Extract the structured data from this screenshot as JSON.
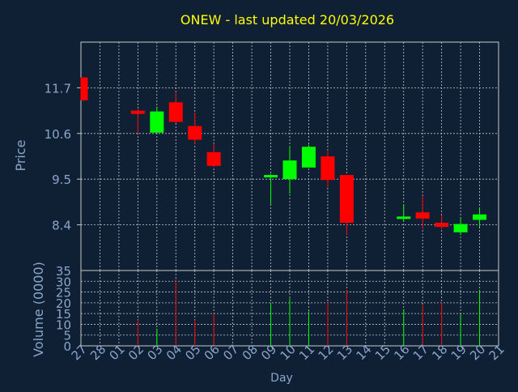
{
  "chart_data": {
    "type": "candlestick",
    "title": "ONEW - last updated 20/03/2026",
    "xlabel": "Day",
    "price_ylabel": "Price",
    "volume_ylabel": "Volume (0000)",
    "x_tick_labels": [
      "27",
      "28",
      "01",
      "02",
      "03",
      "04",
      "05",
      "06",
      "07",
      "08",
      "09",
      "10",
      "11",
      "12",
      "13",
      "14",
      "15",
      "16",
      "17",
      "18",
      "19",
      "20",
      "21"
    ],
    "price_yticks": [
      "11.7",
      "10.6",
      "9.5",
      "8.4"
    ],
    "price_ylim": [
      7.3,
      12.8
    ],
    "volume_yticks": [
      "0",
      "5",
      "10",
      "15",
      "20",
      "25",
      "30",
      "35"
    ],
    "volume_ylim": [
      0,
      35
    ],
    "grid": true,
    "colors": {
      "background": "#0f2035",
      "panel": "#0f2035",
      "grid": "#c8c8c8",
      "title": "#ffff00",
      "text": "#8aa6c8",
      "up": "#00ff00",
      "down": "#ff0000"
    },
    "candles": [
      {
        "x": 0,
        "open": 11.95,
        "close": 11.4,
        "high": 11.95,
        "low": 11.4,
        "volume": 0
      },
      {
        "x": 3,
        "open": 11.15,
        "close": 11.07,
        "high": 11.18,
        "low": 10.6,
        "volume": 12
      },
      {
        "x": 4,
        "open": 10.62,
        "close": 11.13,
        "high": 11.25,
        "low": 10.62,
        "volume": 8
      },
      {
        "x": 5,
        "open": 11.35,
        "close": 10.88,
        "high": 11.6,
        "low": 10.85,
        "volume": 31
      },
      {
        "x": 6,
        "open": 10.78,
        "close": 10.45,
        "high": 11.1,
        "low": 10.35,
        "volume": 12
      },
      {
        "x": 7,
        "open": 10.15,
        "close": 9.82,
        "high": 10.35,
        "low": 9.8,
        "volume": 15
      },
      {
        "x": 10,
        "open": 9.55,
        "close": 9.6,
        "high": 9.62,
        "low": 8.9,
        "volume": 20
      },
      {
        "x": 11,
        "open": 9.5,
        "close": 9.95,
        "high": 10.3,
        "low": 9.15,
        "volume": 22
      },
      {
        "x": 12,
        "open": 9.78,
        "close": 10.28,
        "high": 10.33,
        "low": 9.78,
        "volume": 16
      },
      {
        "x": 13,
        "open": 10.05,
        "close": 9.48,
        "high": 10.2,
        "low": 9.3,
        "volume": 20
      },
      {
        "x": 14,
        "open": 9.6,
        "close": 8.45,
        "high": 9.6,
        "low": 8.15,
        "volume": 26
      },
      {
        "x": 17,
        "open": 8.55,
        "close": 8.6,
        "high": 8.9,
        "low": 8.5,
        "volume": 17
      },
      {
        "x": 18,
        "open": 8.7,
        "close": 8.55,
        "high": 9.1,
        "low": 8.3,
        "volume": 19
      },
      {
        "x": 19,
        "open": 8.45,
        "close": 8.35,
        "high": 8.62,
        "low": 8.3,
        "volume": 20
      },
      {
        "x": 20,
        "open": 8.22,
        "close": 8.42,
        "high": 8.58,
        "low": 8.15,
        "volume": 15
      },
      {
        "x": 21,
        "open": 8.52,
        "close": 8.65,
        "high": 8.8,
        "low": 8.35,
        "volume": 26
      }
    ]
  }
}
